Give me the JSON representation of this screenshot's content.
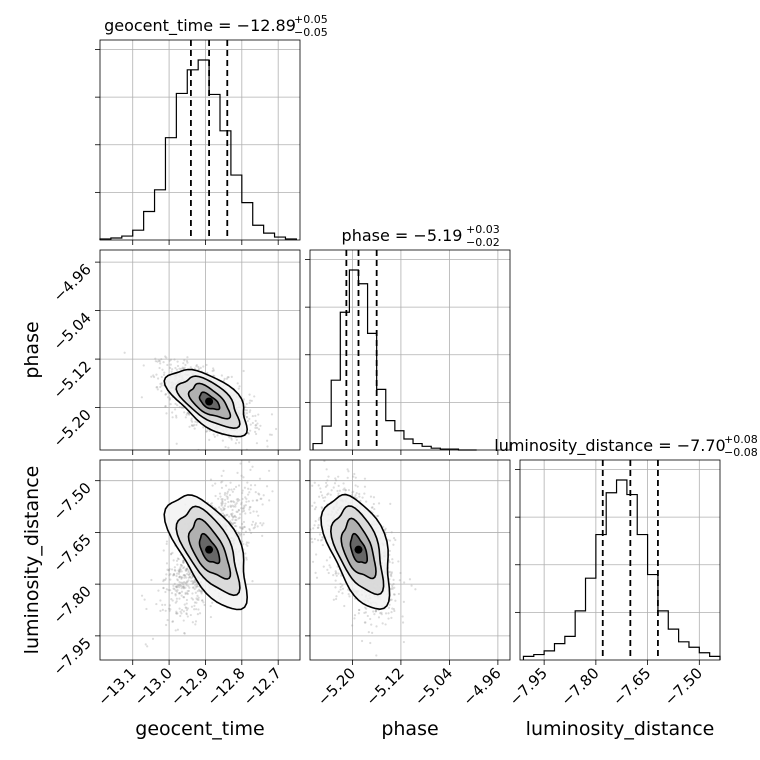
{
  "chart_data": {
    "type": "corner",
    "parameters": [
      "geocent_time",
      "phase",
      "luminosity_distance"
    ],
    "titles": [
      {
        "param": "geocent_time",
        "prefix": "geocent_time = ",
        "median": "−12.89",
        "plus": "+0.05",
        "minus": "−0.05"
      },
      {
        "param": "phase",
        "prefix": "phase = ",
        "median": "−5.19",
        "plus": "+0.03",
        "minus": "−0.02"
      },
      {
        "param": "luminosity_distance",
        "prefix": "luminosity_distance = ",
        "median": "−7.70",
        "plus": "+0.08",
        "minus": "−0.08"
      }
    ],
    "ranges": {
      "geocent_time": [
        -13.19,
        -12.64
      ],
      "phase": [
        -5.27,
        -4.94
      ],
      "luminosity_distance": [
        -8.02,
        -7.44
      ]
    },
    "ticks": {
      "geocent_time": [
        -13.1,
        -13.0,
        -12.9,
        -12.8,
        -12.7
      ],
      "phase": [
        -5.2,
        -5.12,
        -5.04,
        -4.96
      ],
      "luminosity_distance": [
        -7.95,
        -7.8,
        -7.65,
        -7.5
      ]
    },
    "tick_labels": {
      "geocent_time": [
        "−13.1",
        "−13.0",
        "−12.9",
        "−12.8",
        "−12.7"
      ],
      "phase": [
        "−5.20",
        "−5.12",
        "−5.04",
        "−4.96"
      ],
      "luminosity_distance": [
        "−7.95",
        "−7.80",
        "−7.65",
        "−7.50"
      ]
    },
    "quantiles": {
      "geocent_time": [
        -12.94,
        -12.89,
        -12.84
      ],
      "phase": [
        -5.21,
        -5.19,
        -5.16
      ],
      "luminosity_distance": [
        -7.78,
        -7.7,
        -7.62
      ]
    },
    "histograms": {
      "geocent_time": {
        "edges": [
          -13.19,
          -13.16,
          -13.13,
          -13.1,
          -13.07,
          -13.04,
          -13.01,
          -12.98,
          -12.95,
          -12.92,
          -12.89,
          -12.86,
          -12.83,
          -12.8,
          -12.77,
          -12.74,
          -12.71,
          -12.68,
          -12.65
        ],
        "counts": [
          1,
          2,
          4,
          10,
          29,
          51,
          104,
          149,
          173,
          183,
          148,
          111,
          66,
          38,
          15,
          7,
          3,
          1
        ]
      },
      "phase": {
        "edges": [
          -5.265,
          -5.25,
          -5.235,
          -5.22,
          -5.205,
          -5.19,
          -5.175,
          -5.16,
          -5.145,
          -5.13,
          -5.115,
          -5.1,
          -5.085,
          -5.07,
          -5.055,
          -5.04,
          -5.025,
          -5.01,
          -4.995
        ],
        "counts": [
          7,
          26,
          76,
          150,
          196,
          181,
          127,
          66,
          32,
          21,
          12,
          7,
          4,
          2,
          1,
          1,
          0,
          0
        ]
      },
      "luminosity_distance": {
        "edges": [
          -8.01,
          -7.98,
          -7.95,
          -7.92,
          -7.89,
          -7.86,
          -7.83,
          -7.8,
          -7.77,
          -7.74,
          -7.71,
          -7.68,
          -7.65,
          -7.62,
          -7.59,
          -7.56,
          -7.53,
          -7.5,
          -7.47,
          -7.44
        ],
        "counts": [
          2,
          3,
          5,
          9,
          13,
          27,
          45,
          69,
          92,
          99,
          91,
          69,
          47,
          27,
          17,
          10,
          7,
          4,
          2
        ]
      }
    },
    "pairs": [
      {
        "x": "geocent_time",
        "y": "phase",
        "center": [
          -12.89,
          -5.19
        ],
        "sd": [
          0.05,
          0.025
        ],
        "rho": -0.6
      },
      {
        "x": "geocent_time",
        "y": "luminosity_distance",
        "center": [
          -12.89,
          -7.7
        ],
        "sd": [
          0.05,
          0.075
        ],
        "rho": 0.6
      },
      {
        "x": "phase",
        "y": "luminosity_distance",
        "center": [
          -5.19,
          -7.7
        ],
        "sd": [
          0.025,
          0.075
        ],
        "rho": -0.5
      }
    ],
    "contour_levels_sigma": [
      0.5,
      1.0,
      1.5,
      2.0
    ],
    "grid": true,
    "colors": {
      "line": "#000000",
      "grid": "#b0b0b0",
      "samples": "#9a9a9a"
    }
  }
}
